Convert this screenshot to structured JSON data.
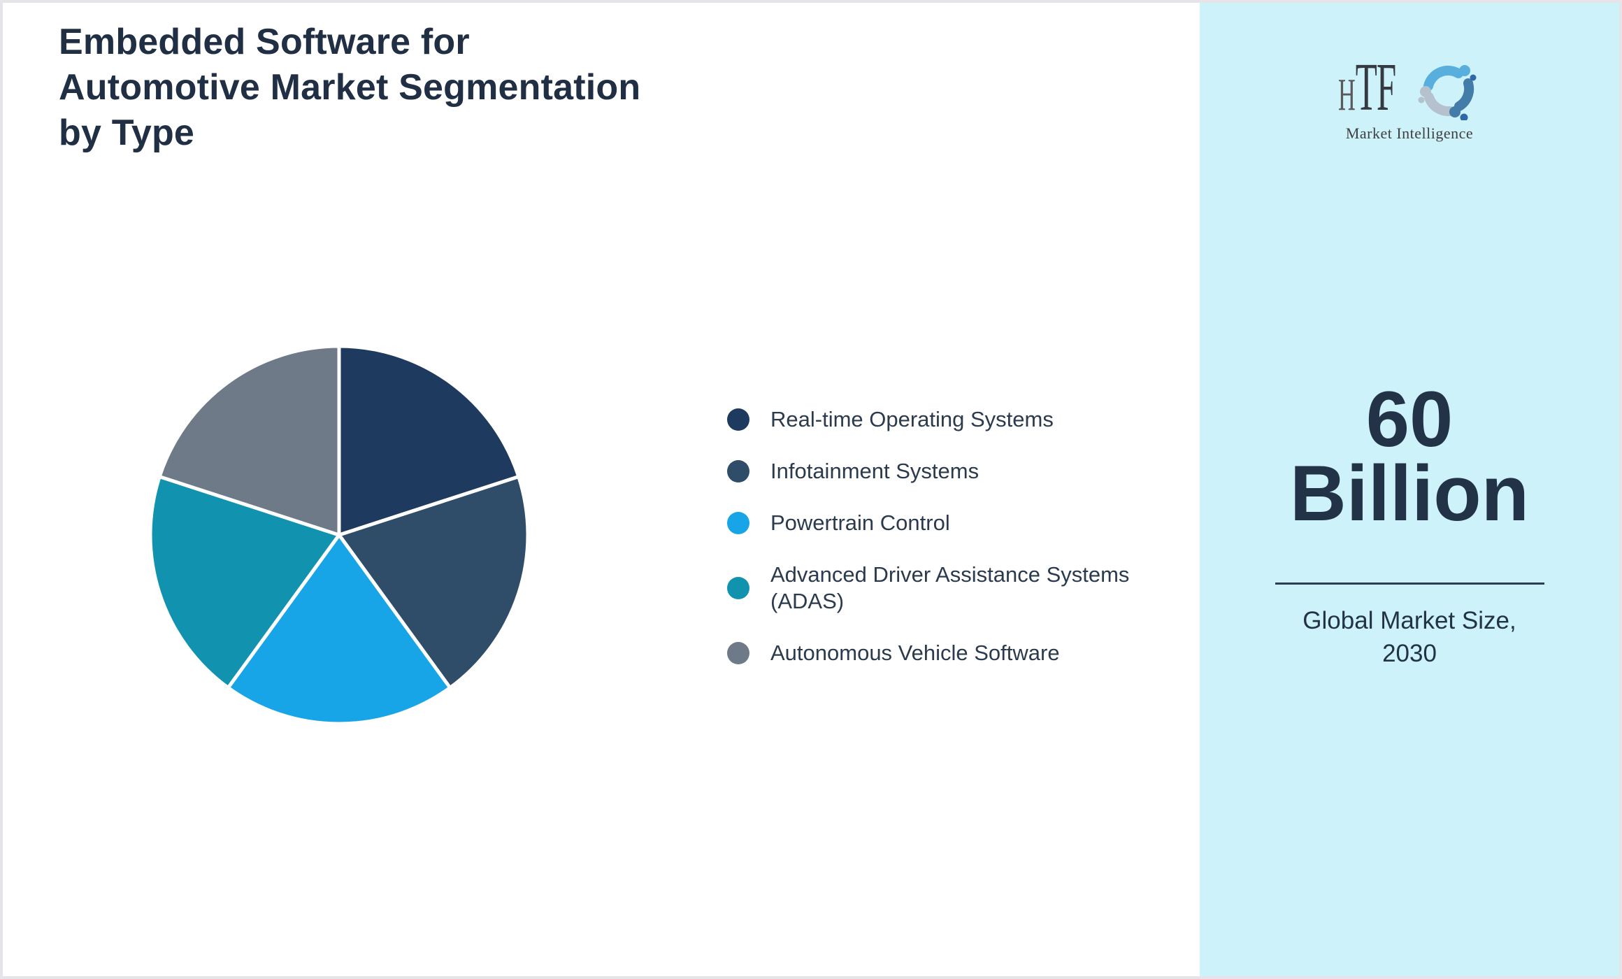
{
  "page": {
    "background": "#FFFFFF",
    "frame_color": "#E5E4E9",
    "title": "Embedded Software for Automotive Market Segmentation by Type",
    "title_lines": [
      "Embedded Software for",
      "Automotive Market Segmentation",
      "by Type"
    ],
    "title_color": "#202F44"
  },
  "chart_data": {
    "type": "pie",
    "title": "Embedded Software for Automotive Market Segmentation by Type",
    "start_angle_deg": 0,
    "direction": "clockwise",
    "legend_position": "right",
    "values_unit": "percent share",
    "slice_divider_color": "#FFFFFF",
    "segments": [
      {
        "label": "Real-time Operating Systems",
        "value": 20,
        "color": "#1E3A5E"
      },
      {
        "label": "Infotainment Systems",
        "value": 20,
        "color": "#2F4C69"
      },
      {
        "label": "Powertrain Control",
        "value": 20,
        "color": "#17A5E8"
      },
      {
        "label": "Advanced Driver Assistance Systems (ADAS)",
        "value": 20,
        "color": "#1193AF"
      },
      {
        "label": "Autonomous Vehicle Software",
        "value": 20,
        "color": "#6F7A88"
      }
    ]
  },
  "sidebar": {
    "background": "#CDF2FA",
    "logo": {
      "name": "HTF Market Intelligence",
      "text_h": "H",
      "text_tf": "TF",
      "tagline": "Market Intelligence",
      "swirl_colors": [
        "#58AEDC",
        "#437CA8",
        "#B5C1CC",
        "#2E68A8"
      ]
    },
    "stat": {
      "value_line1": "60",
      "value_line2": "Billion",
      "label_line1": "Global Market Size,",
      "label_line2": "2030",
      "text_color": "#223247",
      "divider_color": "#2C3C50"
    }
  }
}
